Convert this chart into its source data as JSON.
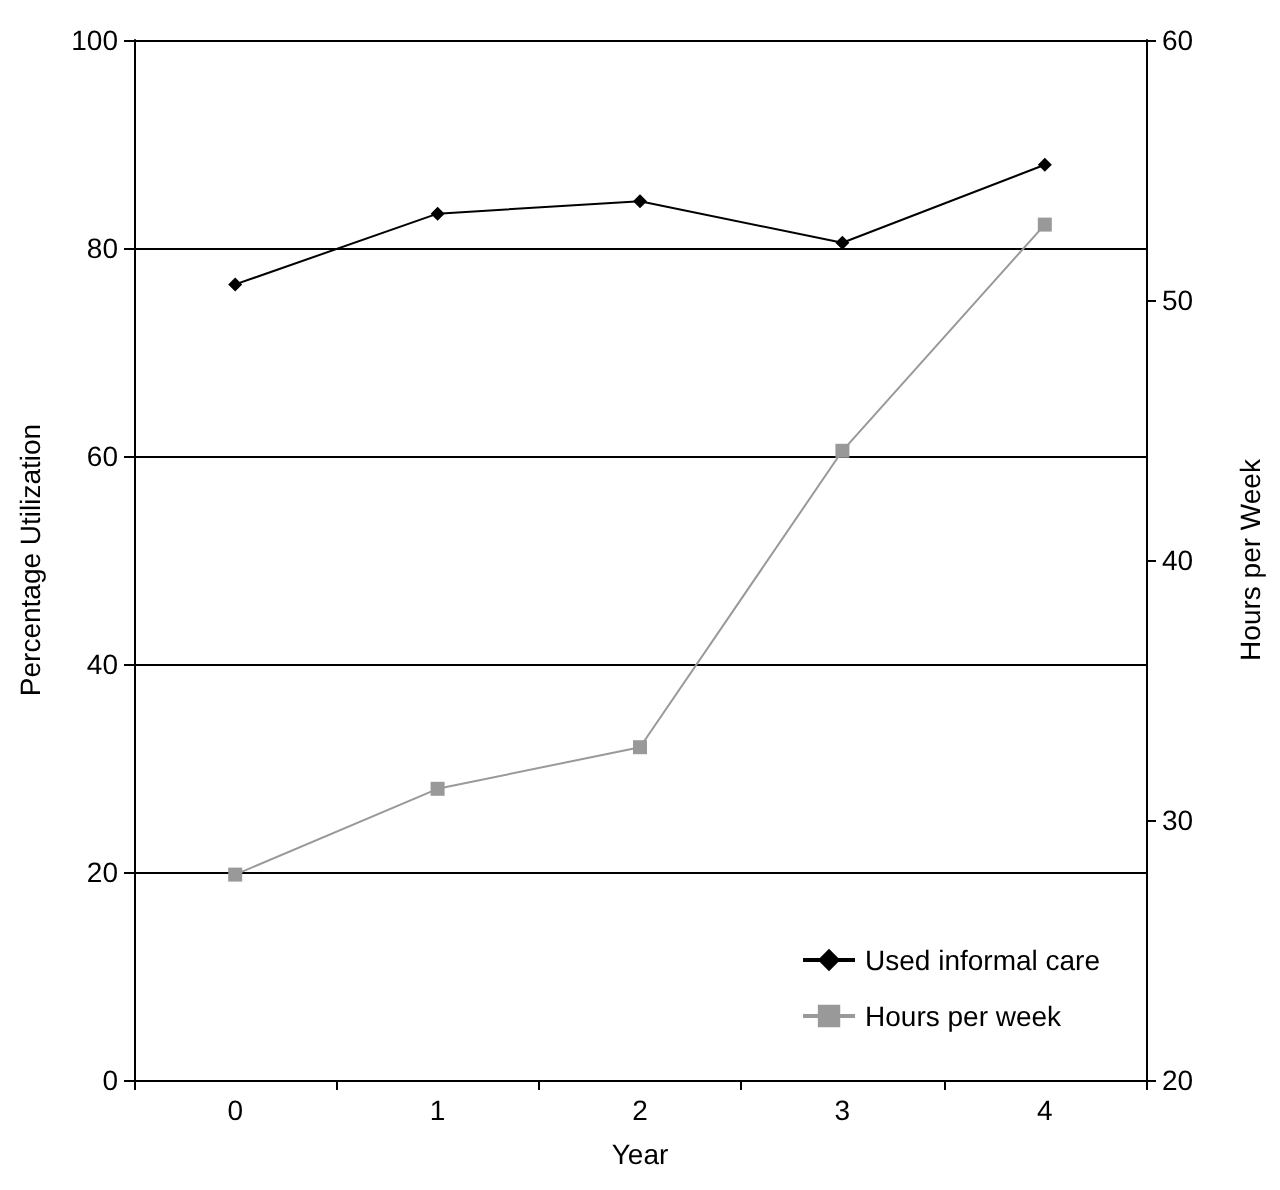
{
  "chart_data": {
    "type": "line",
    "xlabel": "Year",
    "ylabel": "Percentage Utilization",
    "y2label": "Hours per Week",
    "categories": [
      "0",
      "1",
      "2",
      "3",
      "4"
    ],
    "series": [
      {
        "name": "Used informal care",
        "color": "#000000",
        "marker": "diamond",
        "values": [
          76.5,
          83.3,
          84.5,
          80.5,
          88.0
        ]
      },
      {
        "name": "Hours per week",
        "color": "#999999",
        "marker": "square",
        "axis": "y2",
        "values": [
          27.9,
          31.2,
          32.8,
          44.2,
          52.9
        ]
      }
    ],
    "ylim": [
      0,
      100
    ],
    "yticks": [
      0,
      20,
      40,
      60,
      80,
      100
    ],
    "y2lim": [
      20,
      60
    ],
    "y2ticks": [
      20,
      30,
      40,
      50,
      60
    ],
    "grid": "y",
    "legend": "bottom right"
  }
}
